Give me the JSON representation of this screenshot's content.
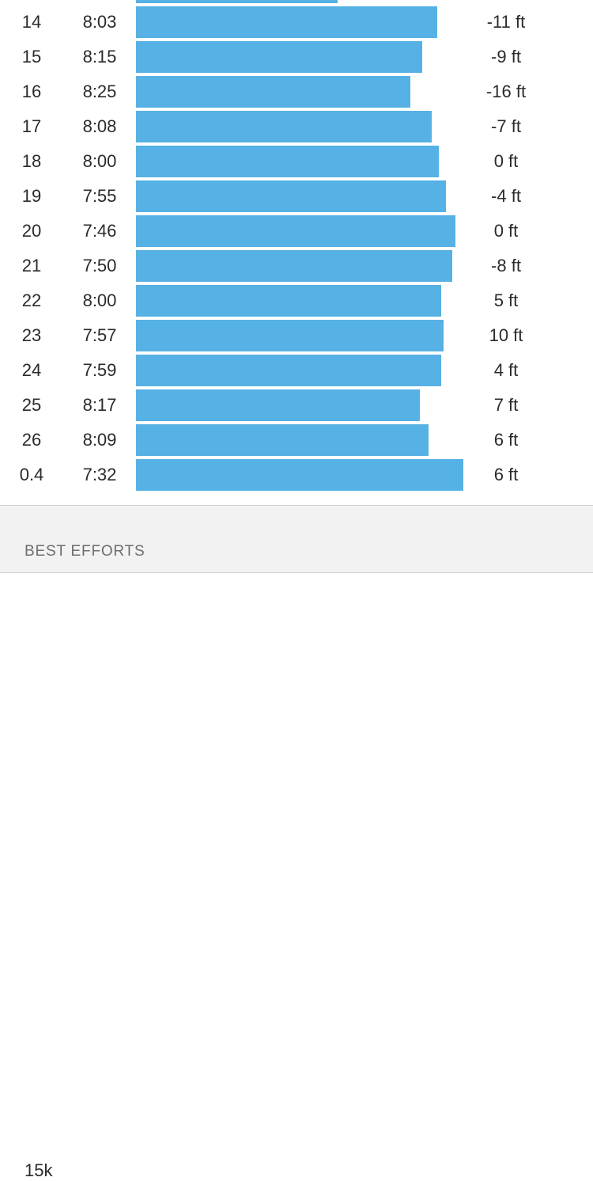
{
  "splits": {
    "max_pace_bar_fraction": 0.61,
    "rows": [
      {
        "mile": "14",
        "pace": "8:03",
        "elevation": "-11 ft",
        "bar_fraction": 0.508
      },
      {
        "mile": "15",
        "pace": "8:15",
        "elevation": "-9 ft",
        "bar_fraction": 0.482
      },
      {
        "mile": "16",
        "pace": "8:25",
        "elevation": "-16 ft",
        "bar_fraction": 0.463
      },
      {
        "mile": "17",
        "pace": "8:08",
        "elevation": "-7 ft",
        "bar_fraction": 0.498
      },
      {
        "mile": "18",
        "pace": "8:00",
        "elevation": "0 ft",
        "bar_fraction": 0.511
      },
      {
        "mile": "19",
        "pace": "7:55",
        "elevation": "-4 ft",
        "bar_fraction": 0.522
      },
      {
        "mile": "20",
        "pace": "7:46",
        "elevation": "0 ft",
        "bar_fraction": 0.538
      },
      {
        "mile": "21",
        "pace": "7:50",
        "elevation": "-8 ft",
        "bar_fraction": 0.533
      },
      {
        "mile": "22",
        "pace": "8:00",
        "elevation": "5 ft",
        "bar_fraction": 0.514
      },
      {
        "mile": "23",
        "pace": "7:57",
        "elevation": "10 ft",
        "bar_fraction": 0.519
      },
      {
        "mile": "24",
        "pace": "7:59",
        "elevation": "4 ft",
        "bar_fraction": 0.514
      },
      {
        "mile": "25",
        "pace": "8:17",
        "elevation": "7 ft",
        "bar_fraction": 0.479
      },
      {
        "mile": "26",
        "pace": "8:09",
        "elevation": "6 ft",
        "bar_fraction": 0.493
      },
      {
        "mile": "0.4",
        "pace": "7:32",
        "elevation": "6 ft",
        "bar_fraction": 0.552
      }
    ]
  },
  "best_efforts": {
    "title": "BEST EFFORTS",
    "first_item_partial": "15k"
  },
  "colors": {
    "bar": "#56b1e4",
    "section_background": "#f2f2f2",
    "text": "#2b2b2b",
    "muted_text": "#6d6d6d"
  }
}
